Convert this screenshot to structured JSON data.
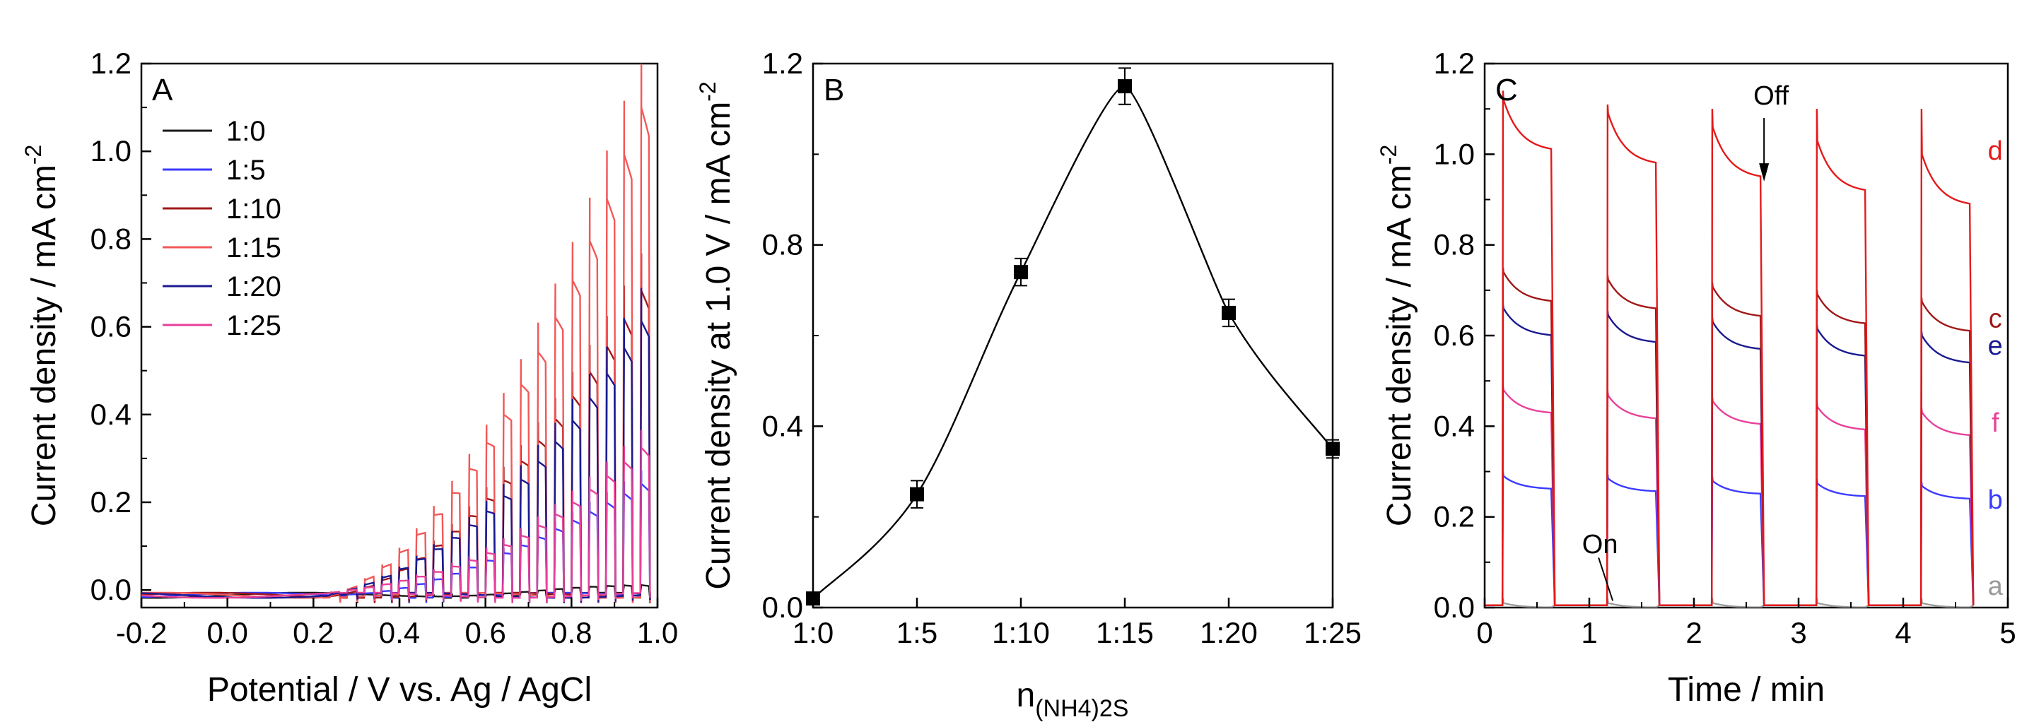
{
  "chart_data": [
    {
      "panel": "A",
      "type": "line",
      "xlabel": "Potential / V vs. Ag / AgCl",
      "ylabel": "Current density / mA cm",
      "ylabel_sup": "-2",
      "xlim": [
        -0.2,
        1.0
      ],
      "ylim": [
        -0.04,
        1.2
      ],
      "xticks": [
        "-0.2",
        "0.0",
        "0.2",
        "0.4",
        "0.6",
        "0.8",
        "1.0"
      ],
      "yticks": [
        "0.0",
        "0.2",
        "0.4",
        "0.6",
        "0.8",
        "1.0",
        "1.2"
      ],
      "legend_position": "top-left",
      "chopped_light": true,
      "series": [
        {
          "name": "1:0",
          "color": "#1a1a1a",
          "end_value": 0.02
        },
        {
          "name": "1:5",
          "color": "#3b3bff",
          "end_value": 0.27
        },
        {
          "name": "1:10",
          "color": "#a01818",
          "end_value": 0.74
        },
        {
          "name": "1:15",
          "color": "#f25858",
          "end_value": 1.18
        },
        {
          "name": "1:20",
          "color": "#1a1a90",
          "end_value": 0.66
        },
        {
          "name": "1:25",
          "color": "#e8409a",
          "end_value": 0.35
        }
      ]
    },
    {
      "panel": "B",
      "type": "line",
      "xlabel": "n",
      "xlabel_sub": "(NH4)2S",
      "ylabel": "Current density at 1.0 V / mA cm",
      "ylabel_sup": "-2",
      "ylim": [
        0.0,
        1.2
      ],
      "yticks": [
        "0.0",
        "0.4",
        "0.8",
        "1.2"
      ],
      "categories": [
        "1:0",
        "1:5",
        "1:10",
        "1:15",
        "1:20",
        "1:25"
      ],
      "values": [
        0.02,
        0.25,
        0.74,
        1.15,
        0.65,
        0.35
      ],
      "errors": [
        0.01,
        0.03,
        0.03,
        0.04,
        0.03,
        0.02
      ]
    },
    {
      "panel": "C",
      "type": "line",
      "xlabel": "Time / min",
      "ylabel": "Current density / mA cm",
      "ylabel_sup": "-2",
      "xlim": [
        0,
        5
      ],
      "ylim": [
        0.0,
        1.2
      ],
      "xticks": [
        "0",
        "1",
        "2",
        "3",
        "4",
        "5"
      ],
      "yticks": [
        "0.0",
        "0.2",
        "0.4",
        "0.6",
        "0.8",
        "1.0",
        "1.2"
      ],
      "on_periods": [
        [
          0.17,
          0.67
        ],
        [
          1.17,
          1.67
        ],
        [
          2.17,
          2.67
        ],
        [
          3.17,
          3.67
        ],
        [
          4.17,
          4.67
        ]
      ],
      "annotations": [
        {
          "text": "On",
          "x": 1.17,
          "y": 0.0
        },
        {
          "text": "Off",
          "x": 2.67,
          "y": 0.93
        }
      ],
      "series": [
        {
          "name": "d",
          "color": "#e41a1a",
          "start": 1.12,
          "end": 0.9
        },
        {
          "name": "c",
          "color": "#a01818",
          "start": 0.74,
          "end": 0.62
        },
        {
          "name": "e",
          "color": "#1a1a90",
          "start": 0.66,
          "end": 0.55
        },
        {
          "name": "f",
          "color": "#e8409a",
          "start": 0.48,
          "end": 0.39
        },
        {
          "name": "b",
          "color": "#3b3bff",
          "start": 0.29,
          "end": 0.25
        },
        {
          "name": "a",
          "color": "#9a9a9a",
          "start": 0.01,
          "end": 0.01
        }
      ]
    }
  ]
}
